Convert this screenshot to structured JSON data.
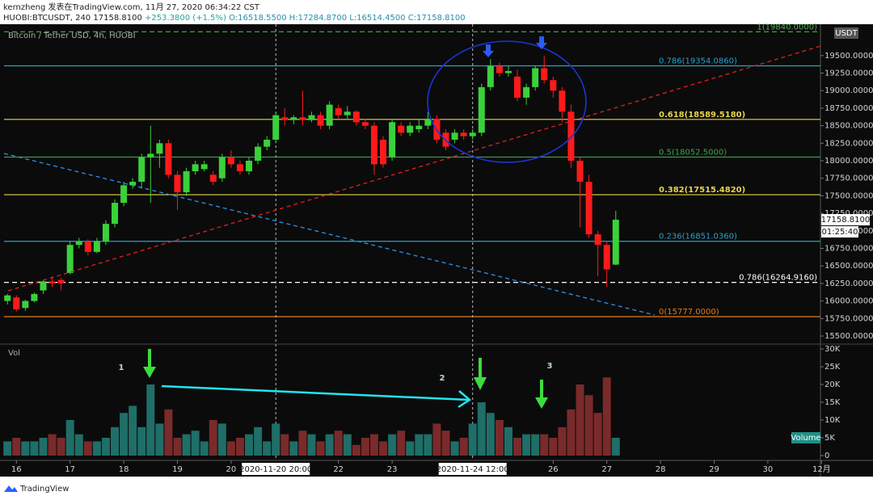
{
  "header": {
    "line1": "kernzheng 发表在TradingView.com, 11月 27, 2020 06:34:22 CST",
    "symbol": "HUOBI:BTCUSDT, 240",
    "price": "17158.8100",
    "change": "+253.3800 (+1.5%)",
    "ohlc": "O:16518.5500 H:17284.8700 L:16514.4500 C:17158.8100"
  },
  "chart_data": {
    "type": "candlestick",
    "title": "Bitcoin / Tether USD, 4h, HUOBI",
    "currency": "USDT",
    "x": [
      15.8333,
      16,
      16.1667,
      16.3333,
      16.5,
      16.6667,
      16.8333,
      17,
      17.1667,
      17.3333,
      17.5,
      17.6667,
      17.8333,
      18,
      18.1667,
      18.3333,
      18.5,
      18.6667,
      18.8333,
      19,
      19.1667,
      19.3333,
      19.5,
      19.6667,
      19.8333,
      20,
      20.1667,
      20.3333,
      20.5,
      20.6667,
      20.8333,
      21,
      21.1667,
      21.3333,
      21.5,
      21.6667,
      21.8333,
      22,
      22.1667,
      22.3333,
      22.5,
      22.6667,
      22.8333,
      23,
      23.1667,
      23.3333,
      23.5,
      23.6667,
      23.8333,
      24,
      24.1667,
      24.3333,
      24.5,
      24.6667,
      24.8333,
      25,
      25.1667,
      25.3333,
      25.5,
      25.6667,
      25.8333,
      26,
      26.1667,
      26.3333,
      26.5,
      26.6667,
      26.8333,
      27,
      27.1667
    ],
    "open": [
      16000,
      16050,
      15900,
      16000,
      16150,
      16280,
      16300,
      16400,
      16800,
      16850,
      16700,
      16850,
      17100,
      17400,
      17650,
      17700,
      18050,
      18100,
      18250,
      17800,
      17550,
      17850,
      17880,
      17800,
      17750,
      18050,
      17950,
      17850,
      18000,
      18200,
      18300,
      18620,
      18580,
      18620,
      18580,
      18650,
      18500,
      18750,
      18650,
      18700,
      18550,
      18500,
      18300,
      18050,
      18500,
      18400,
      18450,
      18500,
      18600,
      18400,
      18300,
      18400,
      18350,
      18400,
      19050,
      19350,
      19250,
      19200,
      18900,
      19050,
      19320,
      19150,
      19000,
      18700,
      18000,
      17700,
      16950,
      16800,
      16518.55
    ],
    "high": [
      16100,
      16080,
      16020,
      16120,
      16300,
      16350,
      16330,
      16850,
      16900,
      16880,
      16900,
      17150,
      17450,
      17700,
      17750,
      18100,
      18500,
      18300,
      18300,
      17850,
      17900,
      18000,
      18000,
      17850,
      18100,
      18150,
      18000,
      18050,
      18250,
      18350,
      18700,
      18750,
      18650,
      19000,
      18700,
      18700,
      18850,
      18800,
      18780,
      18720,
      18600,
      18550,
      18350,
      18600,
      18550,
      18550,
      18600,
      18700,
      18650,
      18450,
      18450,
      18450,
      18450,
      19100,
      19450,
      19400,
      19350,
      19300,
      19100,
      19350,
      19500,
      19200,
      19050,
      18800,
      18050,
      17800,
      17000,
      16850,
      17284.87
    ],
    "low": [
      15950,
      15850,
      15860,
      15980,
      16100,
      16200,
      16150,
      16380,
      16750,
      16650,
      16680,
      16800,
      17050,
      17350,
      17600,
      17600,
      17400,
      17900,
      17750,
      17300,
      17500,
      17800,
      17850,
      17650,
      17700,
      17900,
      17800,
      17800,
      17950,
      18150,
      18250,
      18500,
      18520,
      18500,
      18550,
      18450,
      18450,
      18600,
      18600,
      18500,
      18450,
      17800,
      17900,
      18000,
      18350,
      18350,
      18400,
      18450,
      18250,
      18150,
      18250,
      18300,
      18300,
      18350,
      19000,
      19200,
      19200,
      18850,
      18800,
      19000,
      19100,
      18900,
      18550,
      17900,
      17050,
      16900,
      16350,
      16200,
      16514.45
    ],
    "close": [
      16080,
      15880,
      16000,
      16100,
      16280,
      16250,
      16250,
      16800,
      16850,
      16700,
      16850,
      17100,
      17400,
      17650,
      17700,
      18050,
      18100,
      18250,
      17800,
      17550,
      17850,
      17950,
      17950,
      17700,
      18050,
      17950,
      17850,
      18000,
      18200,
      18300,
      18650,
      18580,
      18620,
      18580,
      18650,
      18500,
      18800,
      18650,
      18700,
      18550,
      18500,
      17950,
      17950,
      18550,
      18400,
      18500,
      18500,
      18600,
      18300,
      18200,
      18400,
      18350,
      18400,
      19050,
      19350,
      19250,
      19280,
      18900,
      19050,
      19320,
      19150,
      19000,
      18700,
      18000,
      17700,
      16950,
      16800,
      16450,
      17158.81
    ],
    "volume": [
      4000,
      5000,
      4000,
      4000,
      5000,
      6000,
      5000,
      10000,
      6000,
      4000,
      4000,
      5000,
      8000,
      12000,
      14000,
      8000,
      20000,
      9000,
      13000,
      5000,
      6000,
      7000,
      4000,
      10000,
      9000,
      4000,
      5000,
      6000,
      8000,
      4000,
      9000,
      6000,
      4000,
      7000,
      6000,
      4000,
      6000,
      7000,
      6000,
      3000,
      5000,
      6000,
      4000,
      6000,
      7000,
      4000,
      6000,
      6000,
      9000,
      7000,
      4000,
      5000,
      9000,
      15000,
      12000,
      10000,
      8000,
      5000,
      6000,
      6000,
      6000,
      5000,
      8000,
      13000,
      20000,
      17000,
      12000,
      22000,
      5000
    ],
    "up_color": "#3ad13a",
    "down_color": "#ff1a1a",
    "volume_up_color": "#1f6e68",
    "volume_down_color": "#7a2a2a",
    "xlim": [
      15.77,
      30.98
    ],
    "xticks": [
      16,
      17,
      18,
      19,
      20,
      22,
      23,
      26,
      27,
      28,
      29,
      30,
      {
        "value": 31,
        "label": "12月"
      }
    ],
    "ylim": [
      15408,
      19924
    ],
    "yticks": [
      {
        "value": 15500,
        "label": "15500.0000"
      },
      {
        "value": 15750,
        "label": "15750.0000"
      },
      {
        "value": 16000,
        "label": "16000.0000"
      },
      {
        "value": 16250,
        "label": "16250.0000"
      },
      {
        "value": 16500,
        "label": "16500.0000"
      },
      {
        "value": 16750,
        "label": "16750.0000"
      },
      {
        "value": 17000,
        "label": "17000.0000"
      },
      {
        "value": 17250,
        "label": "17250.0000"
      },
      {
        "value": 17500,
        "label": "17500.0000"
      },
      {
        "value": 17750,
        "label": "17750.0000"
      },
      {
        "value": 18000,
        "label": "18000.0000"
      },
      {
        "value": 18250,
        "label": "18250.0000"
      },
      {
        "value": 18500,
        "label": "18500.0000"
      },
      {
        "value": 18750,
        "label": "18750.0000"
      },
      {
        "value": 19000,
        "label": "19000.0000"
      },
      {
        "value": 19250,
        "label": "19250.0000"
      },
      {
        "value": 19500,
        "label": "19500.0000"
      }
    ],
    "volume_title": "Vol",
    "y2lim": [
      0,
      30000
    ],
    "y2ticks": [
      0,
      {
        "value": 5000,
        "label": "5K"
      },
      {
        "value": 10000,
        "label": "10K"
      },
      {
        "value": 15000,
        "label": "15K"
      },
      {
        "value": 20000,
        "label": "20K"
      },
      {
        "value": 25000,
        "label": "25K"
      },
      {
        "value": 30000,
        "label": "30K"
      }
    ],
    "volume_tag": "Volume",
    "last_price": {
      "value": 17158.81,
      "label": "17158.8100"
    },
    "countdown": "01:25:40",
    "fib_levels": [
      {
        "value": 19840,
        "label": "1(19840.0000)",
        "color": "#4caf50",
        "dashed": true
      },
      {
        "value": 19354.086,
        "label": "0.786(19354.0860)",
        "color": "#2a9fc9",
        "dashed": false
      },
      {
        "value": 18589.518,
        "label": "0.618(18589.5180)",
        "color": "#e8d44d",
        "dashed": false
      },
      {
        "value": 18052.5,
        "label": "0.5(18052.5000)",
        "color": "#3fa34d",
        "dashed": false
      },
      {
        "value": 17515.482,
        "label": "0.382(17515.4820)",
        "color": "#e8d44d",
        "dashed": false
      },
      {
        "value": 16851.036,
        "label": "0.236(16851.0360)",
        "color": "#2a9fc9",
        "dashed": false
      },
      {
        "value": 16264.916,
        "label": "0.786(16264.9160)",
        "color": "#ffffff",
        "dashed": true
      },
      {
        "value": 15777,
        "label": "0(15777.0000)",
        "color": "#e07b1a",
        "dashed": false
      }
    ],
    "crosshairs": [
      {
        "x": 20.8333,
        "label": "2020-11-20  20:00"
      },
      {
        "x": 24.5,
        "label": "2020-11-24  12:00"
      }
    ],
    "annotations": [
      "1",
      "2",
      "3"
    ]
  },
  "footer": {
    "brand": "TradingView"
  }
}
